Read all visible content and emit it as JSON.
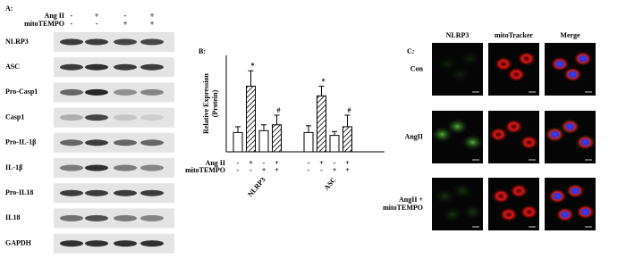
{
  "panel_a": {
    "label": "A:",
    "treatments": [
      {
        "label": "Ang II",
        "signs": [
          "-",
          "+",
          "-",
          "+"
        ]
      },
      {
        "label": "mitoTEMPO",
        "signs": [
          "-",
          "-",
          "+",
          "+"
        ]
      }
    ],
    "blots": [
      "NLRP3",
      "ASC",
      "Pro-Casp1",
      "Casp1",
      "Pro-IL-1β",
      "IL-1β",
      "Pro-IL18",
      "IL18",
      "GAPDH"
    ]
  },
  "chart_data": {
    "type": "bar",
    "label": "B:",
    "y_label": [
      "Relative Expression",
      "(Protein)"
    ],
    "categories": [
      "NLRP3",
      "ASC"
    ],
    "ylim": [
      0,
      5
    ],
    "series": [
      {
        "fill": "white",
        "values": [
          1.0,
          1.0
        ],
        "errors": [
          0.3,
          0.35
        ],
        "annotations": [
          null,
          null
        ]
      },
      {
        "fill": "hatch",
        "values": [
          3.4,
          2.9
        ],
        "errors": [
          0.8,
          0.5
        ],
        "annotations": [
          "*",
          "*"
        ]
      },
      {
        "fill": "white",
        "values": [
          1.1,
          0.85
        ],
        "errors": [
          0.3,
          0.2
        ],
        "annotations": [
          null,
          null
        ]
      },
      {
        "fill": "hatch",
        "values": [
          1.4,
          1.3
        ],
        "errors": [
          0.5,
          0.6
        ],
        "annotations": [
          "#",
          "#"
        ]
      }
    ],
    "treatments": [
      {
        "label": "Ang II",
        "signs": [
          "-",
          "+",
          "-",
          "+"
        ]
      },
      {
        "label": "mitoTEMPO",
        "signs": [
          "-",
          "-",
          "+",
          "+"
        ]
      }
    ]
  },
  "panel_c": {
    "label": "C:",
    "columns": [
      "NLRP3",
      "mitoTracker",
      "Merge"
    ],
    "rows": [
      [
        "Con"
      ],
      [
        "AngII"
      ],
      [
        "AngII +",
        "mitoTEMPO"
      ]
    ]
  }
}
